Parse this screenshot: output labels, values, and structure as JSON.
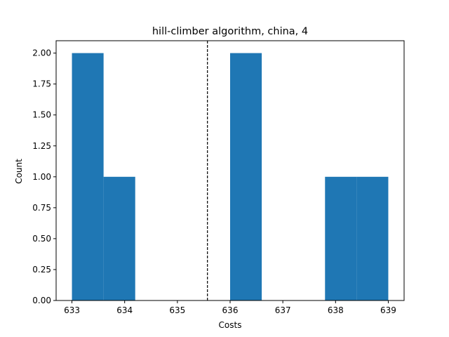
{
  "chart_data": {
    "type": "bar",
    "title": "hill-climber algorithm, china, 4",
    "xlabel": "Costs",
    "ylabel": "Count",
    "xlim": [
      632.7,
      639.3
    ],
    "ylim": [
      0,
      2.1
    ],
    "xticks": [
      633,
      634,
      635,
      636,
      637,
      638,
      639
    ],
    "xtick_labels": [
      "633",
      "634",
      "635",
      "636",
      "637",
      "638",
      "639"
    ],
    "yticks": [
      0,
      0.25,
      0.5,
      0.75,
      1.0,
      1.25,
      1.5,
      1.75,
      2.0
    ],
    "ytick_labels": [
      "0.00",
      "0.25",
      "0.50",
      "0.75",
      "1.00",
      "1.25",
      "1.50",
      "1.75",
      "2.00"
    ],
    "bins": [
      633.0,
      633.6,
      634.2,
      634.8,
      635.4,
      636.0,
      636.6,
      637.2,
      637.8,
      638.4,
      639.0
    ],
    "counts": [
      2,
      1,
      0,
      0,
      0,
      2,
      0,
      0,
      1,
      1
    ],
    "mean_line": 635.57,
    "bar_color": "#1f77b4",
    "mean_line_color": "#000000",
    "grid": false,
    "legend": "none"
  }
}
